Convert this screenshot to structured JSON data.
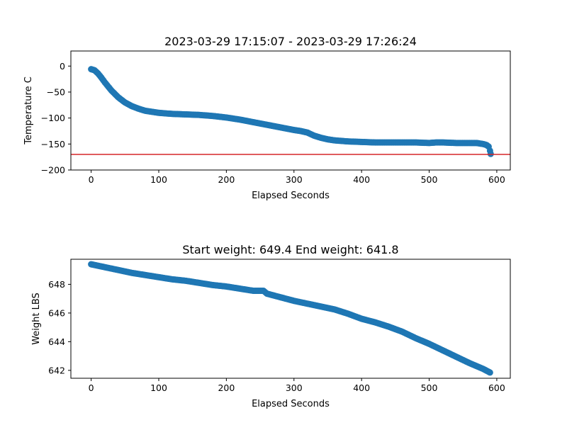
{
  "chart_data": [
    {
      "type": "scatter",
      "title": "2023-03-29 17:15:07 - 2023-03-29 17:26:24",
      "xlabel": "Elapsed Seconds",
      "ylabel": "Temperature C",
      "xlim": [
        -30,
        620
      ],
      "ylim": [
        -200,
        29
      ],
      "xticks": [
        0,
        100,
        200,
        300,
        400,
        500,
        600
      ],
      "yticks": [
        0,
        -50,
        -100,
        -150,
        -200
      ],
      "grid": false,
      "color": "#1f77b4",
      "reference_line": {
        "y": -170,
        "color": "#d62728"
      },
      "x": [
        0,
        5,
        10,
        15,
        20,
        25,
        30,
        40,
        50,
        60,
        70,
        80,
        90,
        100,
        120,
        140,
        160,
        180,
        200,
        220,
        240,
        260,
        280,
        300,
        310,
        320,
        330,
        340,
        350,
        360,
        370,
        380,
        400,
        420,
        440,
        460,
        480,
        500,
        510,
        520,
        540,
        560,
        570,
        580,
        585,
        588,
        590,
        591
      ],
      "y": [
        -6,
        -8,
        -14,
        -22,
        -31,
        -39,
        -47,
        -60,
        -70,
        -77,
        -82,
        -86,
        -88,
        -90,
        -92,
        -93,
        -94,
        -96,
        -99,
        -103,
        -108,
        -113,
        -118,
        -123,
        -125,
        -128,
        -134,
        -138,
        -141,
        -143,
        -144,
        -145,
        -146,
        -147,
        -147,
        -147,
        -147,
        -148,
        -147,
        -147,
        -148,
        -148,
        -148,
        -150,
        -152,
        -155,
        -163,
        -169
      ]
    },
    {
      "type": "scatter",
      "title": "Start weight: 649.4 End weight: 641.8",
      "xlabel": "Elapsed Seconds",
      "ylabel": "Weight LBS",
      "xlim": [
        -30,
        620
      ],
      "ylim": [
        641.45,
        649.75
      ],
      "xticks": [
        0,
        100,
        200,
        300,
        400,
        500,
        600
      ],
      "yticks": [
        642,
        644,
        646,
        648
      ],
      "grid": false,
      "color": "#1f77b4",
      "x": [
        0,
        10,
        20,
        40,
        60,
        80,
        100,
        120,
        140,
        160,
        180,
        200,
        220,
        240,
        255,
        260,
        280,
        300,
        320,
        340,
        360,
        380,
        400,
        420,
        440,
        460,
        480,
        500,
        520,
        540,
        560,
        580,
        590
      ],
      "y": [
        649.4,
        649.3,
        649.2,
        649.0,
        648.8,
        648.65,
        648.5,
        648.35,
        648.25,
        648.1,
        647.95,
        647.85,
        647.7,
        647.55,
        647.55,
        647.35,
        647.1,
        646.85,
        646.65,
        646.45,
        646.25,
        645.95,
        645.6,
        645.35,
        645.05,
        644.7,
        644.25,
        643.85,
        643.4,
        642.95,
        642.5,
        642.1,
        641.85
      ]
    }
  ]
}
